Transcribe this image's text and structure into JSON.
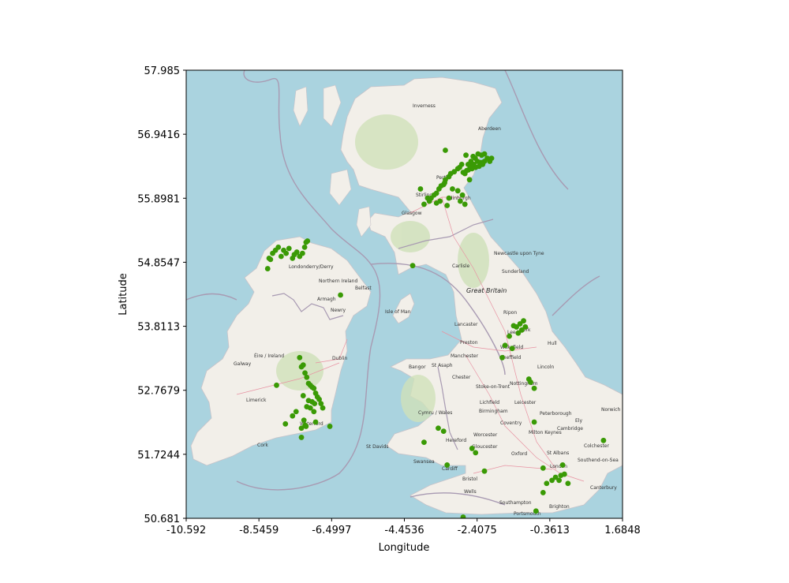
{
  "chart_data": {
    "type": "scatter",
    "xlabel": "Longitude",
    "ylabel": "Latitude",
    "xlim": [
      -10.592,
      1.6848
    ],
    "ylim": [
      50.681,
      57.985
    ],
    "xticks": [
      "-10.592",
      "-8.5459",
      "-6.4997",
      "-4.4536",
      "-2.4075",
      "-0.3613",
      "1.6848"
    ],
    "yticks": [
      "50.681",
      "51.7244",
      "52.7679",
      "53.8113",
      "54.8547",
      "55.8981",
      "56.9416",
      "57.985"
    ],
    "grid": false,
    "marker_color": "#3a9a05",
    "series": [
      {
        "x": [
          -2.0,
          -2.05,
          -2.12,
          -2.2,
          -2.25,
          -2.3,
          -2.35,
          -2.4,
          -2.45,
          -2.5,
          -2.55,
          -2.6,
          -2.65,
          -2.7,
          -2.75,
          -2.8,
          -2.2,
          -2.28,
          -2.38,
          -2.46,
          -2.52,
          -2.58,
          -2.66,
          -2.72,
          -2.84,
          -2.9,
          -2.95,
          -3.05,
          -3.15,
          -3.2,
          -3.3,
          -3.32,
          -3.35,
          -3.42,
          -3.48,
          -3.55,
          -3.62,
          -3.7,
          -3.75,
          -3.55,
          -3.45,
          -3.25,
          -3.2,
          -3.1,
          -2.95,
          -2.82,
          -2.75,
          -2.88,
          -3.8,
          -3.9,
          -4.0,
          -3.3,
          -2.62,
          -7.18,
          -7.22,
          -7.26,
          -7.32,
          -7.4,
          -7.48,
          -7.55,
          -7.6,
          -7.7,
          -7.78,
          -7.85,
          -7.92,
          -8.0,
          -8.08,
          -8.16,
          -8.22,
          -8.26,
          -8.3,
          -6.25,
          -7.4,
          -7.3,
          -7.35,
          -7.25,
          -7.2,
          -7.15,
          -7.1,
          -7.05,
          -7.0,
          -6.95,
          -6.9,
          -6.85,
          -7.3,
          -7.15,
          -7.05,
          -6.98,
          -7.2,
          -7.1,
          -7.0,
          -6.8,
          -6.75,
          -7.5,
          -7.6,
          -7.8,
          -6.95,
          -7.25,
          -7.22,
          -7.35,
          -7.28,
          -6.55,
          -8.05,
          -7.35,
          -4.22,
          -1.1,
          -1.2,
          -1.3,
          -1.15,
          -1.05,
          -1.25,
          -1.38,
          -1.5,
          -1.62,
          -1.42,
          -1.7,
          -0.8,
          -0.95,
          -0.9,
          -0.8,
          -0.45,
          -2.55,
          -3.25,
          -3.35,
          -3.5,
          -3.9,
          -2.2,
          -2.45,
          -0.55,
          -0.55,
          -0.3,
          -0.2,
          -0.05,
          -0.1,
          0.05,
          0.15,
          0.0,
          1.15,
          -0.75,
          -2.8
        ],
        "y": [
          56.55,
          56.5,
          56.55,
          56.5,
          56.45,
          56.48,
          56.42,
          56.5,
          56.4,
          56.45,
          56.38,
          56.42,
          56.36,
          56.35,
          56.3,
          56.32,
          56.62,
          56.6,
          56.62,
          56.55,
          56.58,
          56.5,
          56.45,
          56.6,
          56.45,
          56.4,
          56.38,
          56.33,
          56.3,
          56.25,
          56.2,
          56.15,
          56.12,
          56.1,
          56.05,
          55.98,
          55.95,
          55.9,
          55.85,
          55.82,
          55.85,
          55.78,
          55.9,
          56.05,
          56.02,
          55.95,
          55.8,
          55.85,
          55.9,
          55.8,
          56.05,
          56.68,
          56.2,
          55.2,
          55.18,
          55.1,
          55.0,
          54.95,
          55.02,
          54.98,
          54.92,
          55.08,
          55.0,
          55.05,
          54.95,
          55.1,
          55.05,
          55.0,
          54.9,
          54.92,
          54.75,
          54.32,
          53.3,
          53.18,
          53.15,
          53.05,
          52.98,
          52.88,
          52.85,
          52.82,
          52.8,
          52.72,
          52.66,
          52.62,
          52.68,
          52.6,
          52.58,
          52.55,
          52.5,
          52.48,
          52.42,
          52.55,
          52.48,
          52.42,
          52.35,
          52.22,
          52.25,
          52.2,
          52.18,
          52.15,
          52.28,
          52.18,
          52.85,
          52.0,
          54.8,
          53.9,
          53.85,
          53.8,
          53.75,
          53.8,
          53.7,
          53.82,
          53.65,
          53.5,
          53.45,
          53.3,
          52.8,
          52.95,
          52.9,
          52.25,
          51.25,
          51.82,
          51.55,
          52.1,
          52.15,
          51.92,
          51.45,
          51.75,
          51.5,
          51.1,
          51.3,
          51.35,
          51.38,
          51.3,
          51.4,
          51.25,
          51.55,
          51.95,
          50.8,
          50.7
        ]
      }
    ]
  },
  "map_labels": {
    "country_gb": "Great Britain",
    "country_ie": "Éire / Ireland",
    "northern_ireland": "Northern Ireland",
    "isle_of_man": "Isle of Man",
    "cymru": "Cymru / Wales",
    "cities": [
      "Inverness",
      "Aberdeen",
      "Perth",
      "Stirling",
      "Edinburgh",
      "Glasgow",
      "Newcastle upon Tyne",
      "Sunderland",
      "Carlisle",
      "Londonderry/Derry",
      "Belfast",
      "Armagh",
      "Newry",
      "Ripon",
      "York",
      "Lancaster",
      "Leeds",
      "Preston",
      "Hull",
      "Wakefield",
      "Manchester",
      "Sheffield",
      "Bangor",
      "St Asaph",
      "Chester",
      "Lincoln",
      "Nottingham",
      "Stoke-on-Trent",
      "Lichfield",
      "Leicester",
      "Birmingham",
      "Peterborough",
      "Norwich",
      "Ely",
      "Coventry",
      "Cambridge",
      "Worcester",
      "Milton Keynes",
      "Hereford",
      "St Davids",
      "Gloucester",
      "Oxford",
      "St Albans",
      "Colchester",
      "Southend-on-Sea",
      "Swansea",
      "Cardiff",
      "Bristol",
      "London",
      "Canterbury",
      "Wells",
      "Southampton",
      "Brighton",
      "Portsmouth",
      "Galway",
      "Dublin",
      "Limerick",
      "Waterford",
      "Cork"
    ]
  }
}
